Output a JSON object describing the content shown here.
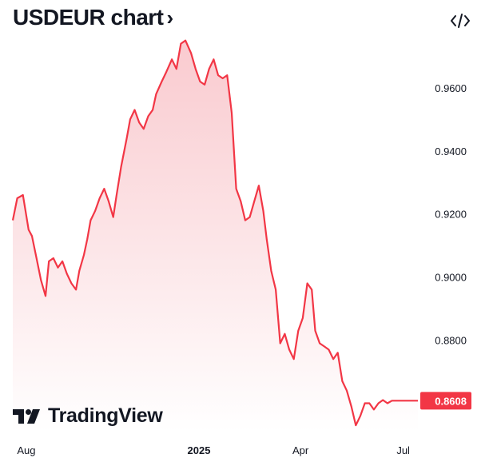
{
  "header": {
    "title": "USDEUR chart",
    "title_chevron": "›",
    "embed_icon": "code-brackets-icon"
  },
  "branding": {
    "logo_text": "TradingView",
    "logo_icon": "tradingview-logo-icon"
  },
  "chart_data": {
    "type": "area",
    "title": "USDEUR chart",
    "xlabel": "",
    "ylabel": "",
    "ylim": [
      0.851,
      0.9777
    ],
    "y_ticks": [
      {
        "value": 0.96,
        "label": "0.9600"
      },
      {
        "value": 0.94,
        "label": "0.9400"
      },
      {
        "value": 0.92,
        "label": "0.9200"
      },
      {
        "value": 0.9,
        "label": "0.9000"
      },
      {
        "value": 0.88,
        "label": "0.8800"
      }
    ],
    "x_ticks": [
      {
        "date": "2024-08-01",
        "label": "Aug",
        "bold": false
      },
      {
        "date": "2025-01-01",
        "label": "2025",
        "bold": true
      },
      {
        "date": "2025-04-01",
        "label": "Apr",
        "bold": false
      },
      {
        "date": "2025-07-01",
        "label": "Jul",
        "bold": false
      }
    ],
    "x_range": [
      "2024-07-20",
      "2025-07-14"
    ],
    "last_value": 0.8608,
    "last_value_label": "0.8608",
    "line_color": "#f23645",
    "fill_color_top": "#f9c8cd",
    "fill_color_bottom": "#ffffff",
    "badge_color": "#f23645",
    "grid": false,
    "series": [
      {
        "x": [
          "2024-07-20",
          "2024-07-24",
          "2024-07-29",
          "2024-08-03",
          "2024-08-06",
          "2024-08-10",
          "2024-08-14",
          "2024-08-18",
          "2024-08-21",
          "2024-08-25",
          "2024-08-29",
          "2024-09-02",
          "2024-09-06",
          "2024-09-10",
          "2024-09-14",
          "2024-09-17",
          "2024-09-21",
          "2024-09-24",
          "2024-09-27",
          "2024-10-01",
          "2024-10-05",
          "2024-10-09",
          "2024-10-13",
          "2024-10-17",
          "2024-10-20",
          "2024-10-24",
          "2024-10-29",
          "2024-11-01",
          "2024-11-05",
          "2024-11-09",
          "2024-11-13",
          "2024-11-17",
          "2024-11-21",
          "2024-11-24",
          "2024-11-29",
          "2024-12-03",
          "2024-12-08",
          "2024-12-12",
          "2024-12-16",
          "2024-12-20",
          "2024-12-25",
          "2024-12-29",
          "2025-01-02",
          "2025-01-06",
          "2025-01-10",
          "2025-01-14",
          "2025-01-18",
          "2025-01-22",
          "2025-01-26",
          "2025-01-30",
          "2025-02-03",
          "2025-02-07",
          "2025-02-11",
          "2025-02-15",
          "2025-02-19",
          "2025-02-23",
          "2025-02-27",
          "2025-03-02",
          "2025-03-06",
          "2025-03-10",
          "2025-03-14",
          "2025-03-18",
          "2025-03-22",
          "2025-03-26",
          "2025-03-30",
          "2025-04-03",
          "2025-04-07",
          "2025-04-11",
          "2025-04-14",
          "2025-04-18",
          "2025-04-22",
          "2025-04-26",
          "2025-04-30",
          "2025-05-04",
          "2025-05-08",
          "2025-05-12",
          "2025-05-16",
          "2025-05-20",
          "2025-05-24",
          "2025-05-28",
          "2025-06-01",
          "2025-06-05",
          "2025-06-09",
          "2025-06-13",
          "2025-06-17",
          "2025-06-21",
          "2025-06-25",
          "2025-06-29",
          "2025-07-03",
          "2025-07-07",
          "2025-07-11",
          "2025-07-14"
        ],
        "values": [
          0.918,
          0.925,
          0.926,
          0.915,
          0.913,
          0.906,
          0.899,
          0.894,
          0.905,
          0.906,
          0.903,
          0.905,
          0.901,
          0.898,
          0.896,
          0.902,
          0.907,
          0.912,
          0.918,
          0.921,
          0.925,
          0.928,
          0.924,
          0.919,
          0.926,
          0.935,
          0.944,
          0.95,
          0.953,
          0.949,
          0.947,
          0.951,
          0.953,
          0.958,
          0.962,
          0.965,
          0.969,
          0.966,
          0.974,
          0.975,
          0.971,
          0.966,
          0.962,
          0.961,
          0.966,
          0.969,
          0.964,
          0.963,
          0.964,
          0.952,
          0.928,
          0.924,
          0.918,
          0.919,
          0.924,
          0.929,
          0.921,
          0.912,
          0.902,
          0.896,
          0.879,
          0.882,
          0.877,
          0.874,
          0.883,
          0.887,
          0.898,
          0.896,
          0.883,
          0.879,
          0.878,
          0.877,
          0.874,
          0.876,
          0.867,
          0.864,
          0.859,
          0.853,
          0.856,
          0.86,
          0.86,
          0.858,
          0.86,
          0.861,
          0.86,
          0.8608,
          0.8608,
          0.8608,
          0.8608,
          0.8608,
          0.8608,
          0.8608
        ]
      }
    ]
  }
}
